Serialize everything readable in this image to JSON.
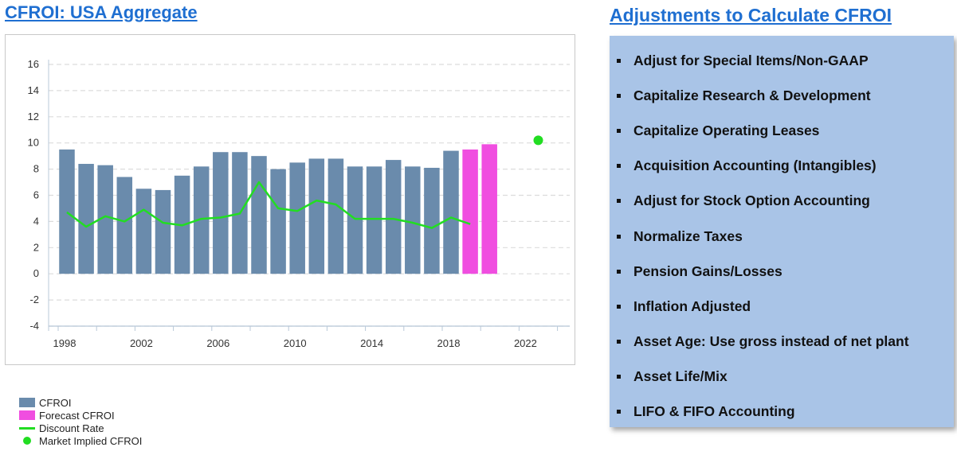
{
  "left_panel": {
    "title": "CFROI: USA Aggregate"
  },
  "right_panel": {
    "title": "Adjustments to Calculate CFROI",
    "items": [
      "Adjust for Special Items/Non-GAAP",
      "Capitalize Research & Development",
      "Capitalize Operating Leases",
      "Acquisition Accounting (Intangibles)",
      "Adjust for Stock Option Accounting",
      "Normalize Taxes",
      "Pension Gains/Losses",
      "Inflation Adjusted",
      "Asset Age: Use gross instead of net plant",
      "Asset Life/Mix",
      "LIFO & FIFO Accounting"
    ]
  },
  "chart_data": {
    "type": "bar",
    "title": "CFROI: USA Aggregate",
    "xlabel": "",
    "ylabel": "",
    "ylim": [
      -4,
      16
    ],
    "yticks": [
      16,
      14,
      12,
      10,
      8,
      6,
      4,
      2,
      0,
      -2,
      -4
    ],
    "xticks": [
      1998,
      2002,
      2006,
      2010,
      2014,
      2018,
      2022
    ],
    "grid": true,
    "legend_position": "bottom-left",
    "colors": {
      "cfroi": "#6a8bac",
      "forecast": "#f04ee0",
      "discount": "#22dd22",
      "market": "#22dd22"
    },
    "series": [
      {
        "name": "CFROI",
        "type": "bar",
        "x": [
          1998,
          1999,
          2000,
          2001,
          2002,
          2003,
          2004,
          2005,
          2006,
          2007,
          2008,
          2009,
          2010,
          2011,
          2012,
          2013,
          2014,
          2015,
          2016,
          2017,
          2018
        ],
        "values": [
          9.5,
          8.4,
          8.3,
          7.4,
          6.5,
          6.4,
          7.5,
          8.2,
          9.3,
          9.3,
          9.0,
          8.0,
          8.5,
          8.8,
          8.8,
          8.2,
          8.2,
          8.7,
          8.2,
          8.1,
          9.4
        ]
      },
      {
        "name": "Forecast CFROI",
        "type": "bar",
        "x": [
          2019,
          2020
        ],
        "values": [
          9.5,
          9.9
        ]
      },
      {
        "name": "Discount Rate",
        "type": "line",
        "x": [
          1998,
          1999,
          2000,
          2001,
          2002,
          2003,
          2004,
          2005,
          2006,
          2007,
          2008,
          2009,
          2010,
          2011,
          2012,
          2013,
          2014,
          2015,
          2016,
          2017,
          2018,
          2019
        ],
        "values": [
          4.7,
          3.6,
          4.4,
          4.0,
          4.9,
          3.9,
          3.7,
          4.2,
          4.3,
          4.6,
          7.0,
          5.0,
          4.8,
          5.6,
          5.3,
          4.2,
          4.2,
          4.2,
          3.9,
          3.5,
          4.3,
          3.8
        ]
      },
      {
        "name": "Market Implied CFROI",
        "type": "scatter",
        "x": [
          2023
        ],
        "values": [
          10.2
        ]
      }
    ]
  }
}
